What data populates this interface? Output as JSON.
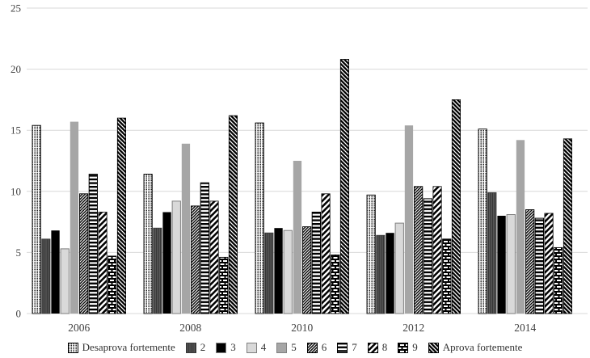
{
  "chart_data": {
    "type": "bar",
    "title": "",
    "xlabel": "",
    "ylabel": "",
    "categories": [
      "2006",
      "2008",
      "2010",
      "2012",
      "2014"
    ],
    "y_ticks": [
      0,
      5,
      10,
      15,
      20,
      25
    ],
    "ylim": [
      0,
      25
    ],
    "grid": "horizontal",
    "legend_position": "bottom",
    "series": [
      {
        "name": "Desaprova fortemente",
        "pattern": "dot-columns",
        "values": [
          15.4,
          11.4,
          15.6,
          9.7,
          15.1
        ]
      },
      {
        "name": "2",
        "pattern": "vlines-darkgray",
        "values": [
          6.1,
          7.0,
          6.6,
          6.4,
          9.9
        ]
      },
      {
        "name": "3",
        "pattern": "solid-black",
        "values": [
          6.8,
          8.3,
          7.0,
          6.6,
          8.0
        ]
      },
      {
        "name": "4",
        "pattern": "solid-lightgray",
        "values": [
          5.3,
          9.2,
          6.8,
          7.4,
          8.1
        ]
      },
      {
        "name": "5",
        "pattern": "solid-gray",
        "values": [
          15.7,
          13.9,
          12.5,
          15.4,
          14.2
        ]
      },
      {
        "name": "6",
        "pattern": "thin-diagonal-down",
        "values": [
          9.8,
          8.8,
          7.1,
          10.4,
          8.5
        ]
      },
      {
        "name": "7",
        "pattern": "horizontal-stripes",
        "values": [
          11.4,
          10.7,
          8.3,
          9.4,
          7.8
        ]
      },
      {
        "name": "8",
        "pattern": "wide-diagonal-up",
        "values": [
          8.3,
          9.2,
          9.8,
          10.4,
          8.2
        ]
      },
      {
        "name": "9",
        "pattern": "brick-zipper",
        "values": [
          4.7,
          4.6,
          4.8,
          6.1,
          5.4
        ]
      },
      {
        "name": "Aprova fortemente",
        "pattern": "dense-diagonal-down",
        "values": [
          16.0,
          16.2,
          20.8,
          17.5,
          14.3
        ]
      }
    ],
    "colors": {
      "black": "#000000",
      "dark_gray": "#595959",
      "gray": "#a6a6a6",
      "light_gray": "#d9d9d9",
      "light_gray_border": "#7f7f7f",
      "gridline": "#d9d9d9",
      "text": "#404040"
    }
  }
}
